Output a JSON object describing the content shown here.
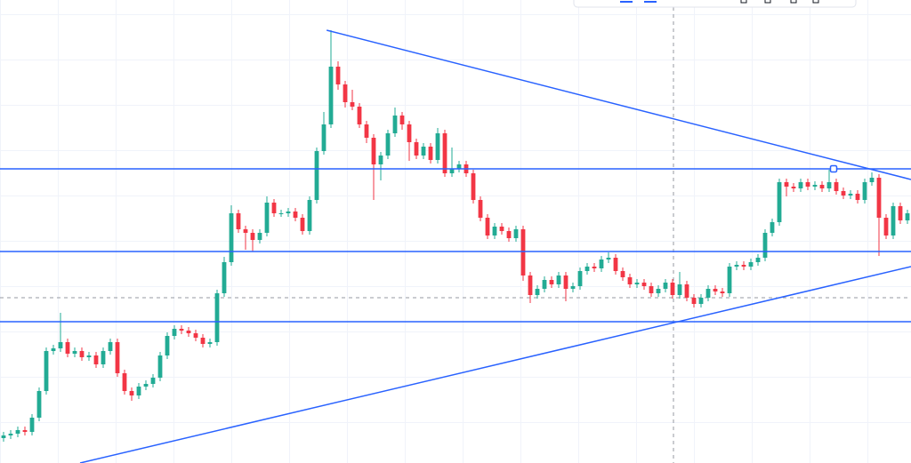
{
  "chart_data": {
    "type": "candlestick",
    "xlim": [
      -0.5,
      127.5
    ],
    "ylim": [
      0,
      521
    ],
    "up_color": "#22ab94",
    "down_color": "#f23645",
    "line_color": "#2962ff",
    "open": [
      28,
      31,
      33,
      37,
      35,
      51,
      81,
      126,
      129,
      136,
      123,
      126,
      119,
      121,
      111,
      126,
      136,
      101,
      81,
      76,
      86,
      89,
      96,
      121,
      143,
      151,
      149,
      146,
      141,
      134,
      136,
      191,
      226,
      281,
      263,
      259,
      251,
      259,
      293,
      281,
      281,
      283,
      276,
      261,
      296,
      351,
      381,
      446,
      426,
      406,
      401,
      381,
      366,
      336,
      346,
      371,
      391,
      381,
      361,
      346,
      356,
      341,
      371,
      326,
      331,
      336,
      326,
      296,
      276,
      256,
      266,
      261,
      253,
      263,
      211,
      189,
      196,
      206,
      201,
      211,
      196,
      199,
      216,
      221,
      219,
      229,
      231,
      216,
      209,
      201,
      203,
      199,
      191,
      196,
      203,
      189,
      201,
      186,
      179,
      186,
      196,
      193,
      191,
      221,
      223,
      221,
      226,
      231,
      259,
      271,
      316,
      311,
      309,
      316,
      311,
      313,
      309,
      316,
      306,
      301,
      303,
      296,
      316,
      321,
      276,
      256,
      289,
      273
    ],
    "high": [
      35,
      37,
      41,
      41,
      55,
      85,
      130,
      133,
      169,
      140,
      130,
      130,
      125,
      125,
      130,
      140,
      140,
      105,
      85,
      90,
      93,
      100,
      125,
      147,
      155,
      155,
      153,
      150,
      145,
      140,
      195,
      232,
      290,
      285,
      267,
      263,
      263,
      300,
      297,
      285,
      287,
      287,
      280,
      300,
      355,
      395,
      487,
      452,
      430,
      420,
      405,
      385,
      370,
      350,
      375,
      400,
      395,
      385,
      365,
      360,
      360,
      377,
      375,
      355,
      340,
      340,
      330,
      300,
      280,
      270,
      270,
      265,
      267,
      267,
      215,
      200,
      210,
      210,
      215,
      215,
      203,
      220,
      225,
      225,
      233,
      237,
      235,
      220,
      213,
      207,
      207,
      203,
      200,
      207,
      207,
      215,
      205,
      190,
      190,
      200,
      200,
      197,
      225,
      227,
      227,
      230,
      235,
      263,
      275,
      320,
      320,
      315,
      320,
      320,
      317,
      317,
      330,
      320,
      310,
      307,
      307,
      320,
      327,
      325,
      280,
      293,
      293,
      285
    ],
    "low": [
      24,
      27,
      29,
      31,
      31,
      47,
      77,
      122,
      125,
      119,
      119,
      115,
      115,
      107,
      107,
      122,
      97,
      77,
      70,
      72,
      82,
      85,
      92,
      117,
      139,
      145,
      142,
      137,
      130,
      130,
      132,
      187,
      222,
      259,
      240,
      238,
      247,
      255,
      277,
      277,
      277,
      272,
      257,
      257,
      292,
      347,
      377,
      420,
      400,
      397,
      377,
      360,
      296,
      318,
      342,
      367,
      375,
      340,
      342,
      342,
      337,
      337,
      322,
      322,
      327,
      322,
      292,
      272,
      252,
      252,
      257,
      249,
      249,
      205,
      180,
      185,
      192,
      197,
      197,
      182,
      192,
      195,
      212,
      215,
      215,
      225,
      212,
      205,
      197,
      197,
      195,
      187,
      187,
      192,
      185,
      185,
      182,
      175,
      175,
      182,
      189,
      187,
      187,
      217,
      217,
      217,
      222,
      227,
      255,
      267,
      300,
      305,
      305,
      307,
      307,
      305,
      305,
      302,
      297,
      297,
      292,
      292,
      312,
      233,
      252,
      252,
      269,
      269
    ],
    "close": [
      31,
      33,
      37,
      35,
      51,
      81,
      126,
      129,
      136,
      123,
      126,
      119,
      121,
      111,
      126,
      136,
      101,
      81,
      76,
      86,
      89,
      96,
      121,
      143,
      151,
      149,
      146,
      141,
      134,
      136,
      191,
      226,
      281,
      263,
      259,
      251,
      259,
      293,
      281,
      281,
      283,
      276,
      261,
      296,
      351,
      381,
      446,
      426,
      406,
      401,
      381,
      366,
      336,
      346,
      371,
      391,
      381,
      361,
      346,
      356,
      341,
      371,
      326,
      331,
      336,
      326,
      296,
      276,
      256,
      266,
      261,
      253,
      263,
      211,
      189,
      196,
      206,
      201,
      211,
      196,
      199,
      216,
      221,
      219,
      229,
      231,
      216,
      209,
      201,
      203,
      199,
      191,
      196,
      203,
      189,
      201,
      186,
      179,
      186,
      196,
      193,
      191,
      221,
      223,
      221,
      226,
      231,
      259,
      271,
      316,
      311,
      309,
      316,
      311,
      313,
      309,
      316,
      306,
      301,
      303,
      296,
      316,
      321,
      276,
      256,
      289,
      273,
      281
    ],
    "horizontal_lines": [
      331,
      238,
      159
    ],
    "trend_lines": [
      {
        "x": [
          45.4,
          127.5
        ],
        "y": [
          487,
          319
        ]
      },
      {
        "x": [
          10.75,
          127.5
        ],
        "y": [
          0,
          221
        ]
      }
    ]
  }
}
